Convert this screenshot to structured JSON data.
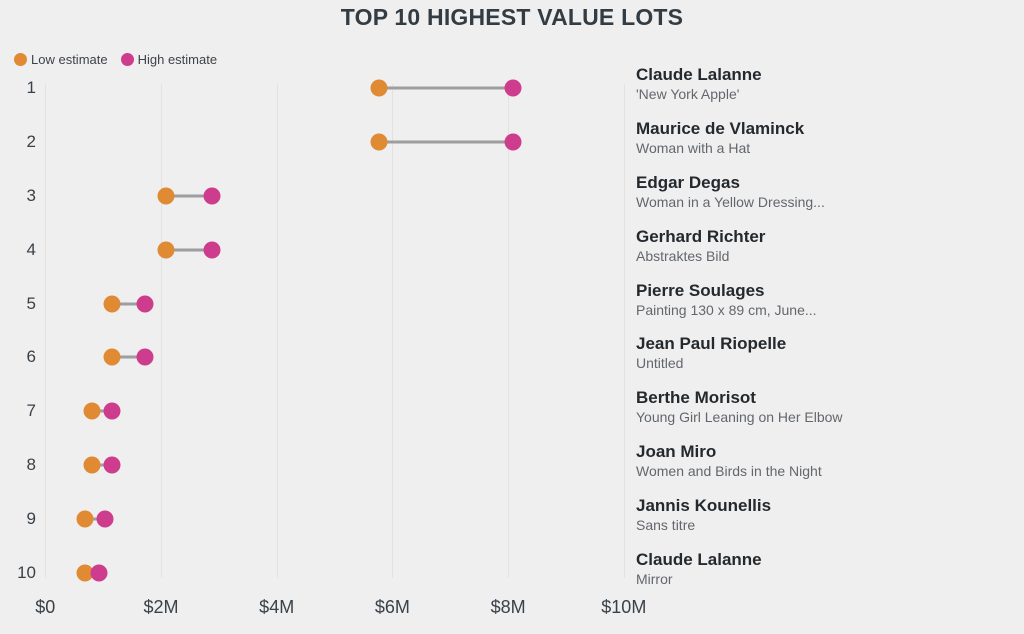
{
  "title": "TOP 10 HIGHEST VALUE LOTS",
  "legend": {
    "low_label": "Low estimate",
    "high_label": "High estimate"
  },
  "colors": {
    "low": "#E08A33",
    "high": "#CE3D8D",
    "connector": "#9E9EA0",
    "background": "#EFEFF0",
    "gridline": "#E2E2E4",
    "title_text": "#333C42",
    "artist_text": "#24292D",
    "work_text": "#63676B"
  },
  "chart_data": {
    "type": "dumbbell",
    "title": "TOP 10 HIGHEST VALUE LOTS",
    "legend_position": "top-left",
    "grid": "vertical-only",
    "x_axis": {
      "label": "",
      "tick_labels": [
        "$0",
        "$2M",
        "$4M",
        "$6M",
        "$8M",
        "$10M"
      ],
      "tick_values_millions": [
        0,
        2,
        4,
        6,
        8,
        10
      ],
      "xlim_millions": [
        0,
        10
      ],
      "unit": "USD"
    },
    "categories": [
      "1",
      "2",
      "3",
      "4",
      "5",
      "6",
      "7",
      "8",
      "9",
      "10"
    ],
    "series": [
      {
        "name": "Low estimate",
        "color": "#E08A33",
        "values_millions": [
          5.77,
          5.77,
          2.08,
          2.08,
          1.15,
          1.15,
          0.81,
          0.81,
          0.69,
          0.69
        ]
      },
      {
        "name": "High estimate",
        "color": "#CE3D8D",
        "values_millions": [
          8.08,
          8.08,
          2.89,
          2.89,
          1.73,
          1.73,
          1.15,
          1.15,
          1.04,
          0.92
        ]
      }
    ],
    "lots": [
      {
        "rank": "1",
        "artist": "Claude Lalanne",
        "work": "'New York Apple'",
        "low_estimate_millions": 5.77,
        "high_estimate_millions": 8.08
      },
      {
        "rank": "2",
        "artist": "Maurice de Vlaminck",
        "work": "Woman with a Hat",
        "low_estimate_millions": 5.77,
        "high_estimate_millions": 8.08
      },
      {
        "rank": "3",
        "artist": "Edgar Degas",
        "work": "Woman in a Yellow Dressing...",
        "low_estimate_millions": 2.08,
        "high_estimate_millions": 2.89
      },
      {
        "rank": "4",
        "artist": "Gerhard Richter",
        "work": "Abstraktes Bild",
        "low_estimate_millions": 2.08,
        "high_estimate_millions": 2.89
      },
      {
        "rank": "5",
        "artist": "Pierre Soulages",
        "work": "Painting 130 x 89 cm, June...",
        "low_estimate_millions": 1.15,
        "high_estimate_millions": 1.73
      },
      {
        "rank": "6",
        "artist": "Jean Paul Riopelle",
        "work": "Untitled",
        "low_estimate_millions": 1.15,
        "high_estimate_millions": 1.73
      },
      {
        "rank": "7",
        "artist": "Berthe Morisot",
        "work": "Young Girl Leaning on Her Elbow",
        "low_estimate_millions": 0.81,
        "high_estimate_millions": 1.15
      },
      {
        "rank": "8",
        "artist": "Joan Miro",
        "work": "Women and Birds in the Night",
        "low_estimate_millions": 0.81,
        "high_estimate_millions": 1.15
      },
      {
        "rank": "9",
        "artist": "Jannis Kounellis",
        "work": "Sans titre",
        "low_estimate_millions": 0.69,
        "high_estimate_millions": 1.04
      },
      {
        "rank": "10",
        "artist": "Claude Lalanne",
        "work": "Mirror",
        "low_estimate_millions": 0.69,
        "high_estimate_millions": 0.92
      }
    ]
  }
}
